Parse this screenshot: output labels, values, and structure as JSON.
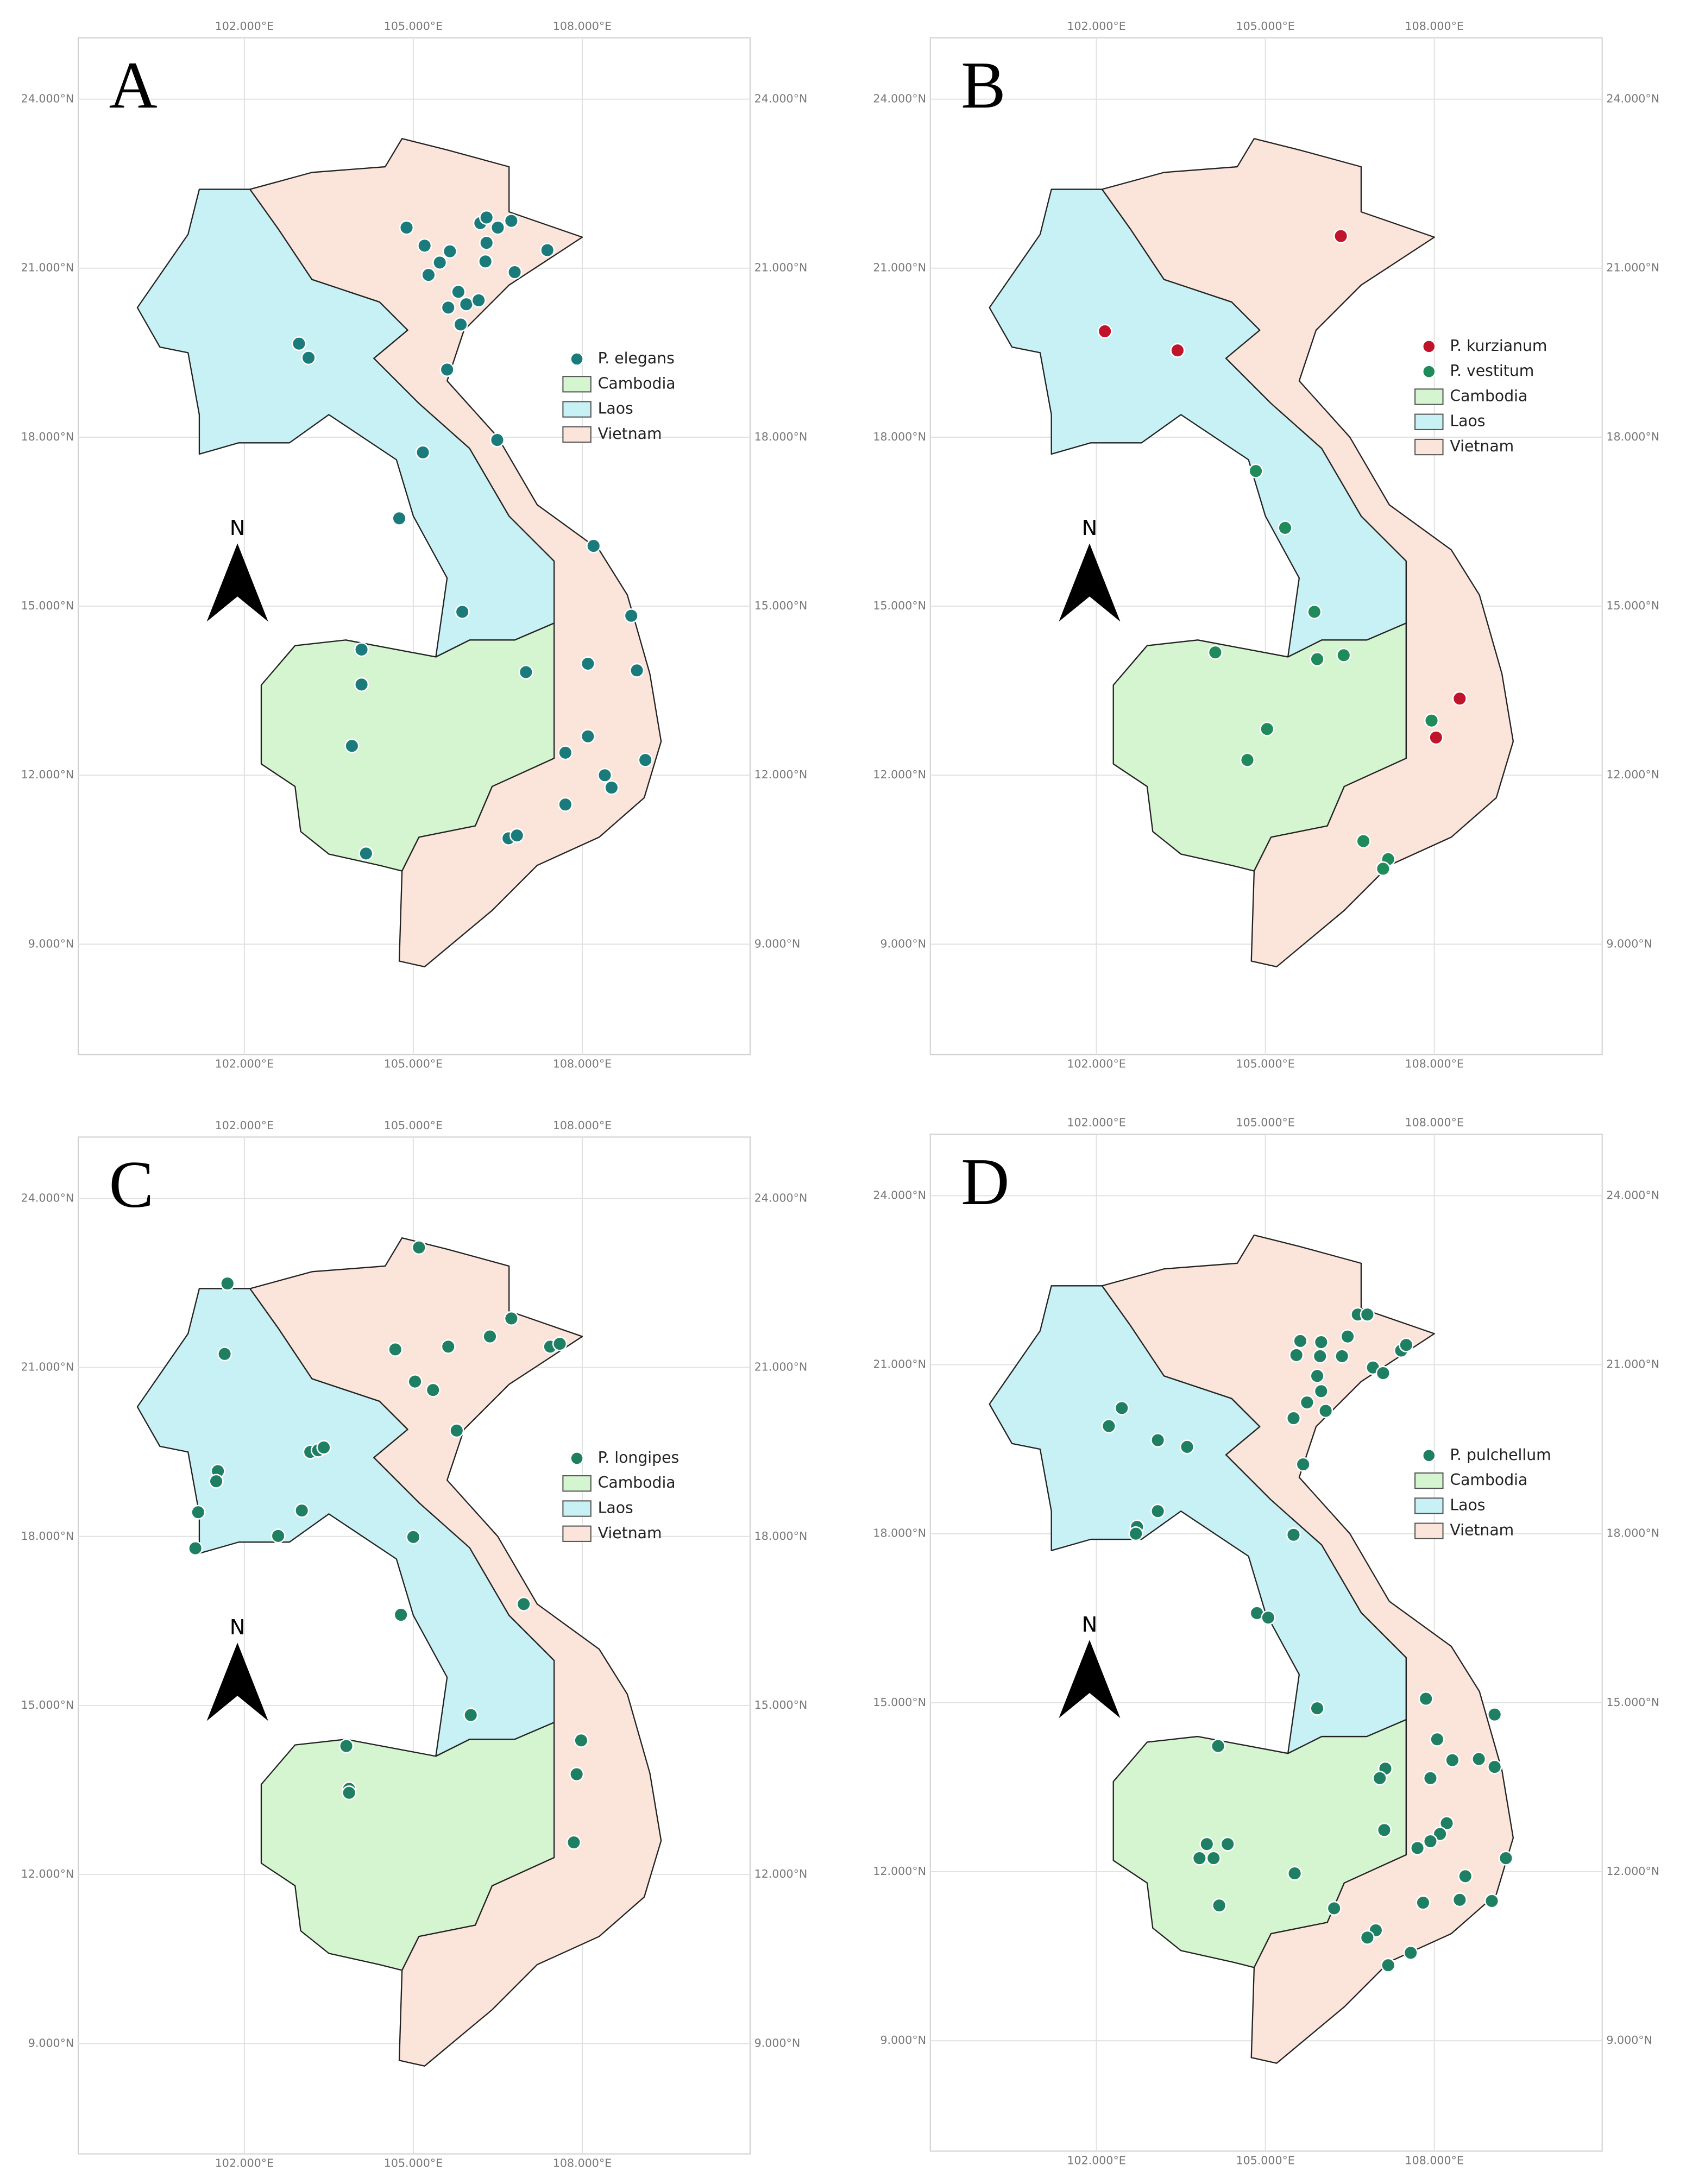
{
  "chart_data": [
    {
      "type": "map",
      "title": "A",
      "north_label": "N",
      "grid": true,
      "legend_position": "right",
      "xlim": [
        99.05,
        110.98
      ],
      "ylim": [
        7.04,
        25.09
      ],
      "xticks": [
        {
          "value": 102,
          "label": "102.000°E"
        },
        {
          "value": 105,
          "label": "105.000°E"
        },
        {
          "value": 108,
          "label": "108.000°E"
        }
      ],
      "yticks": [
        {
          "value": 9,
          "label": "9.000°N"
        },
        {
          "value": 12,
          "label": "12.000°N"
        },
        {
          "value": 15,
          "label": "15.000°N"
        },
        {
          "value": 18,
          "label": "18.000°N"
        },
        {
          "value": 21,
          "label": "21.000°N"
        },
        {
          "value": 24,
          "label": "24.000°N"
        }
      ],
      "series": [
        {
          "name": "P. elegans",
          "color": "#1b7b7b",
          "x": [
            104.88,
            105.2,
            105.47,
            105.65,
            105.27,
            106.19,
            106.3,
            106.5,
            106.74,
            106.3,
            106.28,
            106.8,
            107.38,
            105.8,
            105.62,
            105.94,
            106.16,
            105.84,
            102.97,
            103.14,
            105.6,
            106.49,
            105.17,
            104.75,
            108.2,
            105.87,
            104.08,
            108.87,
            104.08,
            107.0,
            108.1,
            108.97,
            103.91,
            108.1,
            107.7,
            108.4,
            108.52,
            109.12,
            107.7,
            106.69,
            106.84,
            104.16
          ],
          "y": [
            21.72,
            21.4,
            21.1,
            21.3,
            20.88,
            21.8,
            21.9,
            21.72,
            21.84,
            21.45,
            21.12,
            20.93,
            21.32,
            20.58,
            20.3,
            20.36,
            20.43,
            20.0,
            19.66,
            19.41,
            19.2,
            17.95,
            17.73,
            16.56,
            16.07,
            14.9,
            14.23,
            14.83,
            13.61,
            13.83,
            13.98,
            13.86,
            12.52,
            12.69,
            12.4,
            12.0,
            11.78,
            12.27,
            11.48,
            10.88,
            10.93,
            10.61
          ]
        }
      ],
      "regions": [
        {
          "name": "Cambodia",
          "color": "#d4f5cf"
        },
        {
          "name": "Laos",
          "color": "#c8f1f5"
        },
        {
          "name": "Vietnam",
          "color": "#fbe4d9"
        }
      ]
    },
    {
      "type": "map",
      "title": "B",
      "north_label": "N",
      "grid": true,
      "legend_position": "right",
      "xlim": [
        99.05,
        110.98
      ],
      "ylim": [
        7.04,
        25.09
      ],
      "xticks": [
        {
          "value": 102,
          "label": "102.000°E"
        },
        {
          "value": 105,
          "label": "105.000°E"
        },
        {
          "value": 108,
          "label": "108.000°E"
        }
      ],
      "yticks": [
        {
          "value": 9,
          "label": "9.000°N"
        },
        {
          "value": 12,
          "label": "12.000°N"
        },
        {
          "value": 15,
          "label": "15.000°N"
        },
        {
          "value": 18,
          "label": "18.000°N"
        },
        {
          "value": 21,
          "label": "21.000°N"
        },
        {
          "value": 24,
          "label": "24.000°N"
        }
      ],
      "series": [
        {
          "name": "P. kurzianum",
          "color": "#c0142b",
          "x": [
            106.34,
            102.15,
            103.44,
            108.45,
            108.03
          ],
          "y": [
            21.57,
            19.88,
            19.54,
            13.36,
            12.67
          ]
        },
        {
          "name": "P. vestitum",
          "color": "#1f8a5a",
          "x": [
            104.83,
            105.35,
            105.87,
            104.11,
            105.92,
            106.39,
            105.03,
            104.68,
            107.95,
            106.74,
            107.18,
            107.09
          ],
          "y": [
            17.4,
            16.39,
            14.9,
            14.18,
            14.06,
            14.13,
            12.82,
            12.27,
            12.97,
            10.83,
            10.51,
            10.34
          ]
        }
      ],
      "regions": [
        {
          "name": "Cambodia",
          "color": "#d4f5cf"
        },
        {
          "name": "Laos",
          "color": "#c8f1f5"
        },
        {
          "name": "Vietnam",
          "color": "#fbe4d9"
        }
      ]
    },
    {
      "type": "map",
      "title": "C",
      "north_label": "N",
      "grid": true,
      "legend_position": "right",
      "xlim": [
        99.05,
        110.98
      ],
      "ylim": [
        7.04,
        25.09
      ],
      "xticks": [
        {
          "value": 102,
          "label": "102.000°E"
        },
        {
          "value": 105,
          "label": "105.000°E"
        },
        {
          "value": 108,
          "label": "108.000°E"
        }
      ],
      "yticks": [
        {
          "value": 9,
          "label": "9.000°N"
        },
        {
          "value": 12,
          "label": "12.000°N"
        },
        {
          "value": 15,
          "label": "15.000°N"
        },
        {
          "value": 18,
          "label": "18.000°N"
        },
        {
          "value": 21,
          "label": "21.000°N"
        },
        {
          "value": 24,
          "label": "24.000°N"
        }
      ],
      "series": [
        {
          "name": "P. longipes",
          "color": "#1f7f62",
          "x": [
            101.7,
            105.1,
            101.65,
            104.68,
            105.62,
            106.36,
            106.74,
            107.43,
            107.6,
            105.03,
            105.35,
            105.77,
            103.17,
            103.31,
            103.41,
            101.53,
            101.5,
            101.18,
            103.02,
            102.6,
            101.13,
            105.0,
            106.96,
            104.78,
            106.02,
            103.81,
            103.86,
            103.86,
            107.98,
            107.9,
            107.85
          ],
          "y": [
            22.49,
            23.13,
            21.24,
            21.32,
            21.37,
            21.55,
            21.87,
            21.37,
            21.42,
            20.75,
            20.6,
            19.88,
            19.5,
            19.53,
            19.58,
            19.16,
            18.98,
            18.43,
            18.46,
            18.01,
            17.79,
            17.99,
            16.8,
            16.61,
            14.83,
            14.28,
            13.52,
            13.45,
            14.38,
            13.78,
            12.57
          ]
        }
      ],
      "regions": [
        {
          "name": "Cambodia",
          "color": "#d4f5cf"
        },
        {
          "name": "Laos",
          "color": "#c8f1f5"
        },
        {
          "name": "Vietnam",
          "color": "#fbe4d9"
        }
      ]
    },
    {
      "type": "map",
      "title": "D",
      "north_label": "N",
      "grid": true,
      "legend_position": "right",
      "xlim": [
        99.05,
        110.98
      ],
      "ylim": [
        7.04,
        25.09
      ],
      "xticks": [
        {
          "value": 102,
          "label": "102.000°E"
        },
        {
          "value": 105,
          "label": "105.000°E"
        },
        {
          "value": 108,
          "label": "108.000°E"
        }
      ],
      "yticks": [
        {
          "value": 9,
          "label": "9.000°N"
        },
        {
          "value": 12,
          "label": "12.000°N"
        },
        {
          "value": 15,
          "label": "15.000°N"
        },
        {
          "value": 18,
          "label": "18.000°N"
        },
        {
          "value": 21,
          "label": "21.000°N"
        },
        {
          "value": 24,
          "label": "24.000°N"
        }
      ],
      "series": [
        {
          "name": "P. pulchellum",
          "color": "#1f7f62",
          "x": [
            105.99,
            105.62,
            105.55,
            105.97,
            106.36,
            106.46,
            106.64,
            106.81,
            106.91,
            107.09,
            107.41,
            107.5,
            105.92,
            105.99,
            105.74,
            106.07,
            105.5,
            105.67,
            102.45,
            102.22,
            103.09,
            103.61,
            103.09,
            102.72,
            102.7,
            105.5,
            104.85,
            105.05,
            105.92,
            104.16,
            107.85,
            109.07,
            108.05,
            108.32,
            108.79,
            109.07,
            107.13,
            107.03,
            107.93,
            107.11,
            108.22,
            108.1,
            107.93,
            107.7,
            103.96,
            104.33,
            104.08,
            103.83,
            105.52,
            108.55,
            109.27,
            104.18,
            106.22,
            107.8,
            108.45,
            109.02,
            106.96,
            106.81,
            107.58,
            107.18
          ],
          "y": [
            21.4,
            21.42,
            21.17,
            21.15,
            21.15,
            21.5,
            21.89,
            21.89,
            20.95,
            20.85,
            21.25,
            21.35,
            20.8,
            20.53,
            20.33,
            20.18,
            20.05,
            19.23,
            20.23,
            19.91,
            19.66,
            19.54,
            18.4,
            18.12,
            18.0,
            17.98,
            16.59,
            16.51,
            14.9,
            14.23,
            15.07,
            14.79,
            14.35,
            13.98,
            14.0,
            13.86,
            13.83,
            13.66,
            13.66,
            12.74,
            12.86,
            12.67,
            12.54,
            12.42,
            12.49,
            12.49,
            12.24,
            12.24,
            11.97,
            11.92,
            12.24,
            11.4,
            11.35,
            11.45,
            11.5,
            11.48,
            10.96,
            10.83,
            10.56,
            10.34
          ]
        }
      ],
      "regions": [
        {
          "name": "Cambodia",
          "color": "#d4f5cf"
        },
        {
          "name": "Laos",
          "color": "#c8f1f5"
        },
        {
          "name": "Vietnam",
          "color": "#fbe4d9"
        }
      ]
    }
  ]
}
